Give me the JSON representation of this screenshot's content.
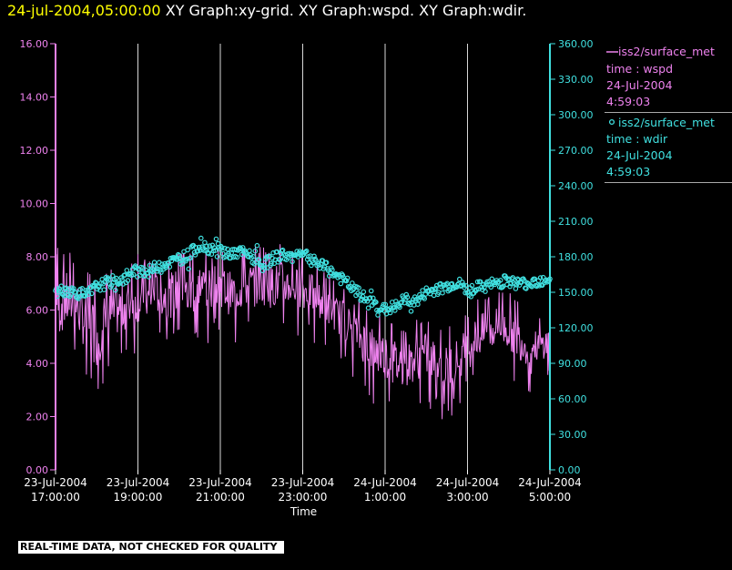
{
  "header": {
    "timestamp": "24-jul-2004,05:00:00",
    "graphs": "XY Graph:xy-grid.  XY Graph:wspd.  XY Graph:wdir."
  },
  "colors": {
    "background": "#000000",
    "timestamp": "#ffff00",
    "wspd": "#ee82ee",
    "wdir": "#40e0e0",
    "grid": "#d8d8d8",
    "legend_divider": "#a9a9a9"
  },
  "legend": {
    "wspd": {
      "name": "iss2/surface_met",
      "var": "time : wspd",
      "date": "24-Jul-2004",
      "time": "4:59:03"
    },
    "wdir": {
      "name": "iss2/surface_met",
      "var": "time : wdir",
      "date": "24-Jul-2004",
      "time": "4:59:03"
    }
  },
  "footer": {
    "quality_note": "REAL-TIME DATA, NOT CHECKED FOR QUALITY"
  },
  "chart_data": {
    "type": "line",
    "xlabel": "Time",
    "x_range": [
      "23-Jul-2004 17:00:00",
      "24-Jul-2004 5:00:00"
    ],
    "x_ticks": [
      {
        "date": "23-Jul-2004",
        "time": "17:00:00"
      },
      {
        "date": "23-Jul-2004",
        "time": "19:00:00"
      },
      {
        "date": "23-Jul-2004",
        "time": "21:00:00"
      },
      {
        "date": "23-Jul-2004",
        "time": "23:00:00"
      },
      {
        "date": "24-Jul-2004",
        "time": "1:00:00"
      },
      {
        "date": "24-Jul-2004",
        "time": "3:00:00"
      },
      {
        "date": "24-Jul-2004",
        "time": "5:00:00"
      }
    ],
    "grid": "vertical lines at each tick",
    "left_axis": {
      "series": "wspd",
      "ylim": [
        0,
        16
      ],
      "ticks": [
        "0.00",
        "2.00",
        "4.00",
        "6.00",
        "8.00",
        "10.00",
        "12.00",
        "14.00",
        "16.00"
      ]
    },
    "right_axis": {
      "series": "wdir",
      "ylim": [
        0,
        360
      ],
      "ticks": [
        "0.00",
        "30.00",
        "60.00",
        "90.00",
        "120.00",
        "150.00",
        "180.00",
        "210.00",
        "240.00",
        "270.00",
        "300.00",
        "330.00",
        "360.00"
      ]
    },
    "sample_hours": [
      0,
      0.25,
      0.5,
      0.75,
      1,
      1.25,
      1.5,
      1.75,
      2,
      2.25,
      2.5,
      2.75,
      3,
      3.25,
      3.5,
      3.75,
      4,
      4.25,
      4.5,
      4.75,
      5,
      5.25,
      5.5,
      5.75,
      6,
      6.25,
      6.5,
      6.75,
      7,
      7.25,
      7.5,
      7.75,
      8,
      8.25,
      8.5,
      8.75,
      9,
      9.25,
      9.5,
      9.75,
      10,
      10.25,
      10.5,
      10.75,
      11,
      11.25,
      11.5,
      11.75,
      12
    ],
    "series": [
      {
        "name": "wspd",
        "axis": "left",
        "style": "line",
        "min_max": [
          [
            4.3,
            8.0
          ],
          [
            4.8,
            7.9
          ],
          [
            4.9,
            7.6
          ],
          [
            3.9,
            7.0
          ],
          [
            3.2,
            7.1
          ],
          [
            4.4,
            7.0
          ],
          [
            4.6,
            7.4
          ],
          [
            4.9,
            7.6
          ],
          [
            5.1,
            7.8
          ],
          [
            5.3,
            7.5
          ],
          [
            5.5,
            7.8
          ],
          [
            5.3,
            7.7
          ],
          [
            5.5,
            8.0
          ],
          [
            5.2,
            7.9
          ],
          [
            5.8,
            8.2
          ],
          [
            5.6,
            7.9
          ],
          [
            5.8,
            8.1
          ],
          [
            5.4,
            7.8
          ],
          [
            5.6,
            8.0
          ],
          [
            5.7,
            8.2
          ],
          [
            5.9,
            8.0
          ],
          [
            5.7,
            8.1
          ],
          [
            5.8,
            8.2
          ],
          [
            5.9,
            7.9
          ],
          [
            5.7,
            7.9
          ],
          [
            5.6,
            7.6
          ],
          [
            5.3,
            7.2
          ],
          [
            5.0,
            6.8
          ],
          [
            4.6,
            6.7
          ],
          [
            4.3,
            6.2
          ],
          [
            3.6,
            6.0
          ],
          [
            3.2,
            5.8
          ],
          [
            3.0,
            5.6
          ],
          [
            2.7,
            5.3
          ],
          [
            2.8,
            5.1
          ],
          [
            3.0,
            5.3
          ],
          [
            3.2,
            5.5
          ],
          [
            2.8,
            5.2
          ],
          [
            2.6,
            5.0
          ],
          [
            3.0,
            5.3
          ],
          [
            3.4,
            5.7
          ],
          [
            3.8,
            6.2
          ],
          [
            4.0,
            6.3
          ],
          [
            4.4,
            6.5
          ],
          [
            4.2,
            6.3
          ],
          [
            3.8,
            6.0
          ],
          [
            3.6,
            5.6
          ],
          [
            3.9,
            5.4
          ],
          [
            4.0,
            5.7
          ]
        ]
      },
      {
        "name": "wdir",
        "axis": "right",
        "style": "circles",
        "values": [
          150,
          152,
          150,
          147,
          155,
          158,
          160,
          162,
          170,
          167,
          173,
          175,
          178,
          182,
          190,
          187,
          186,
          182,
          184,
          180,
          172,
          178,
          182,
          180,
          185,
          176,
          172,
          166,
          160,
          152,
          145,
          140,
          135,
          138,
          144,
          142,
          150,
          152,
          155,
          158,
          152,
          154,
          156,
          158,
          160,
          157,
          158,
          160,
          162
        ],
        "band": 5
      }
    ]
  }
}
